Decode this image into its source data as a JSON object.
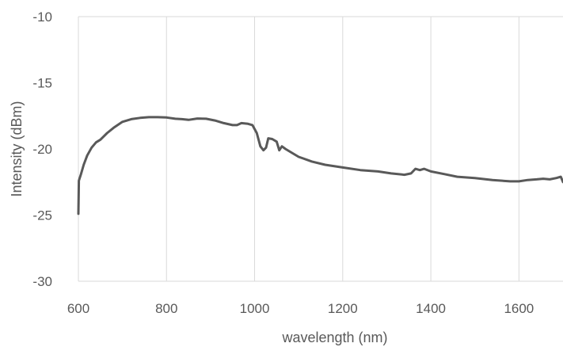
{
  "chart_data": {
    "type": "line",
    "title": "",
    "xlabel": "wavelength (nm)",
    "ylabel": "Intensity (dBm)",
    "xlim": [
      600,
      1700
    ],
    "ylim": [
      -30,
      -10
    ],
    "x_ticks": [
      600,
      800,
      1000,
      1200,
      1400,
      1600
    ],
    "y_ticks": [
      -10,
      -15,
      -20,
      -25,
      -30
    ],
    "x_tick_labels": [
      "600",
      "800",
      "1000",
      "1200",
      "1400",
      "1600"
    ],
    "y_tick_labels": [
      "-10",
      "-15",
      "-20",
      "-25",
      "-30"
    ],
    "grid": "vertical",
    "legend": "none",
    "line_color": "#595959",
    "grid_color": "#d9d9d9",
    "series": [
      {
        "points": [
          [
            600,
            -24.9
          ],
          [
            601,
            -22.4
          ],
          [
            606,
            -21.9
          ],
          [
            612,
            -21.2
          ],
          [
            620,
            -20.5
          ],
          [
            630,
            -19.9
          ],
          [
            640,
            -19.5
          ],
          [
            650,
            -19.3
          ],
          [
            665,
            -18.8
          ],
          [
            680,
            -18.4
          ],
          [
            700,
            -17.95
          ],
          [
            720,
            -17.75
          ],
          [
            740,
            -17.65
          ],
          [
            760,
            -17.6
          ],
          [
            780,
            -17.6
          ],
          [
            800,
            -17.62
          ],
          [
            820,
            -17.72
          ],
          [
            835,
            -17.75
          ],
          [
            850,
            -17.8
          ],
          [
            870,
            -17.7
          ],
          [
            890,
            -17.72
          ],
          [
            910,
            -17.85
          ],
          [
            930,
            -18.05
          ],
          [
            950,
            -18.2
          ],
          [
            960,
            -18.2
          ],
          [
            970,
            -18.05
          ],
          [
            985,
            -18.1
          ],
          [
            995,
            -18.2
          ],
          [
            1005,
            -18.8
          ],
          [
            1013,
            -19.8
          ],
          [
            1020,
            -20.1
          ],
          [
            1026,
            -19.9
          ],
          [
            1031,
            -19.2
          ],
          [
            1040,
            -19.25
          ],
          [
            1050,
            -19.45
          ],
          [
            1056,
            -20.1
          ],
          [
            1062,
            -19.8
          ],
          [
            1070,
            -20.0
          ],
          [
            1085,
            -20.3
          ],
          [
            1100,
            -20.6
          ],
          [
            1130,
            -20.95
          ],
          [
            1160,
            -21.2
          ],
          [
            1200,
            -21.4
          ],
          [
            1240,
            -21.6
          ],
          [
            1280,
            -21.7
          ],
          [
            1310,
            -21.85
          ],
          [
            1340,
            -21.95
          ],
          [
            1355,
            -21.85
          ],
          [
            1365,
            -21.5
          ],
          [
            1375,
            -21.6
          ],
          [
            1385,
            -21.5
          ],
          [
            1400,
            -21.7
          ],
          [
            1430,
            -21.9
          ],
          [
            1460,
            -22.1
          ],
          [
            1500,
            -22.2
          ],
          [
            1540,
            -22.35
          ],
          [
            1580,
            -22.45
          ],
          [
            1600,
            -22.45
          ],
          [
            1620,
            -22.35
          ],
          [
            1640,
            -22.3
          ],
          [
            1655,
            -22.25
          ],
          [
            1670,
            -22.3
          ],
          [
            1685,
            -22.2
          ],
          [
            1695,
            -22.1
          ],
          [
            1700,
            -22.5
          ]
        ]
      }
    ]
  }
}
